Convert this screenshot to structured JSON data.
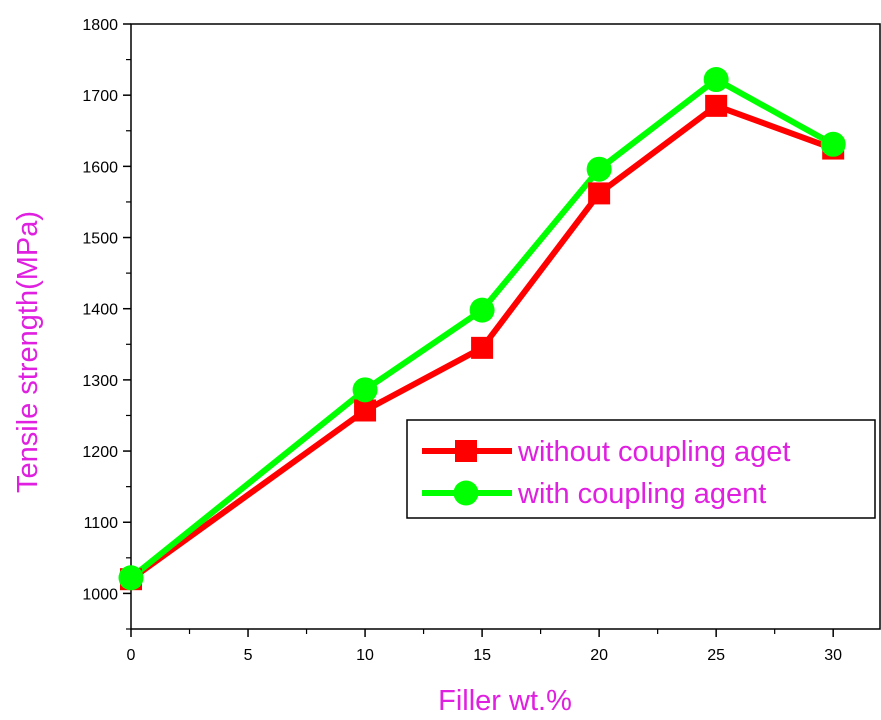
{
  "chart_data": {
    "type": "line",
    "xlabel": "Filler wt.%",
    "ylabel": "Tensile strength(MPa)",
    "xlim": [
      0,
      32
    ],
    "ylim": [
      950,
      1800
    ],
    "x_ticks": [
      0,
      5,
      10,
      15,
      20,
      25,
      30
    ],
    "y_ticks": [
      1000,
      1100,
      1200,
      1300,
      1400,
      1500,
      1600,
      1700,
      1800
    ],
    "x_tick_labels": [
      "0",
      "5",
      "10",
      "15",
      "20",
      "25",
      "30"
    ],
    "y_tick_labels": [
      "1000",
      "1100",
      "1200",
      "1300",
      "1400",
      "1500",
      "1600",
      "1700",
      "1800"
    ],
    "grid": false,
    "legend_position": "lower-right",
    "label_color": "#e020e0",
    "x": [
      0,
      10,
      15,
      20,
      25,
      30
    ],
    "series": [
      {
        "name": "without coupling aget",
        "values": [
          1020,
          1257,
          1345,
          1562,
          1685,
          1625
        ],
        "color": "#ff0000",
        "marker": "square"
      },
      {
        "name": "with coupling agent",
        "values": [
          1022,
          1286,
          1398,
          1596,
          1722,
          1631
        ],
        "color": "#00ff00",
        "marker": "circle"
      }
    ]
  }
}
